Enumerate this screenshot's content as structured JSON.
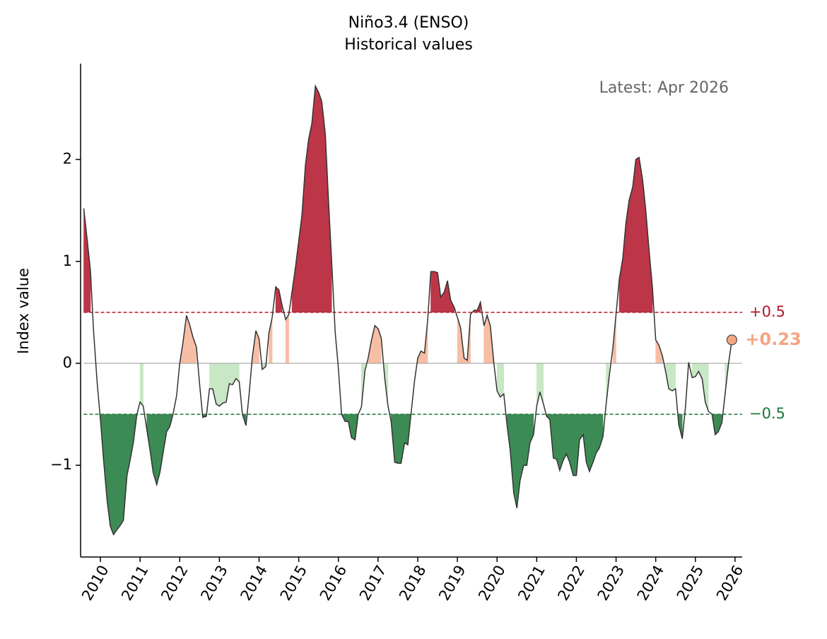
{
  "chart_data": {
    "type": "line",
    "title": "Niño3.4 (ENSO)",
    "subtitle": "Historical values",
    "ylabel": "Index value",
    "annotation": "Latest: Apr 2026",
    "xlim": [
      2009.5,
      2026.18
    ],
    "ylim": [
      -1.9,
      2.94
    ],
    "xticks": [
      2010,
      2011,
      2012,
      2013,
      2014,
      2015,
      2016,
      2017,
      2018,
      2019,
      2020,
      2021,
      2022,
      2023,
      2024,
      2025,
      2026
    ],
    "yticks": [
      {
        "value": -1,
        "label": "−1"
      },
      0,
      1,
      2
    ],
    "line_color": "#333333",
    "zero_line_color": "#999999",
    "fill_colors": {
      "strong_positive": "#bc3648",
      "weak_positive": "#f7bea6",
      "weak_negative": "#c8e8c5",
      "strong_negative": "#3c8b55"
    },
    "thresholds": [
      {
        "value": 0.5,
        "label": "+0.5",
        "color": "#b2182b"
      },
      {
        "value": -0.5,
        "label": "−0.5",
        "color": "#1b7837"
      }
    ],
    "last_value_label": "+0.23",
    "last_marker_color": "#f4a582",
    "x": [
      2009.58,
      2009.67,
      2009.75,
      2009.83,
      2009.92,
      2010,
      2010.08,
      2010.17,
      2010.25,
      2010.33,
      2010.42,
      2010.5,
      2010.58,
      2010.67,
      2010.75,
      2010.83,
      2010.92,
      2011,
      2011.08,
      2011.17,
      2011.25,
      2011.33,
      2011.42,
      2011.5,
      2011.58,
      2011.67,
      2011.75,
      2011.83,
      2011.92,
      2012,
      2012.08,
      2012.17,
      2012.25,
      2012.33,
      2012.42,
      2012.5,
      2012.58,
      2012.67,
      2012.75,
      2012.83,
      2012.92,
      2013,
      2013.08,
      2013.17,
      2013.25,
      2013.33,
      2013.42,
      2013.5,
      2013.58,
      2013.67,
      2013.75,
      2013.83,
      2013.92,
      2014,
      2014.08,
      2014.17,
      2014.25,
      2014.33,
      2014.42,
      2014.5,
      2014.58,
      2014.67,
      2014.75,
      2014.83,
      2014.92,
      2015,
      2015.08,
      2015.17,
      2015.25,
      2015.33,
      2015.42,
      2015.5,
      2015.58,
      2015.67,
      2015.75,
      2015.83,
      2015.92,
      2016,
      2016.08,
      2016.17,
      2016.25,
      2016.33,
      2016.42,
      2016.5,
      2016.58,
      2016.67,
      2016.75,
      2016.83,
      2016.92,
      2017,
      2017.08,
      2017.17,
      2017.25,
      2017.33,
      2017.42,
      2017.5,
      2017.58,
      2017.67,
      2017.75,
      2017.83,
      2017.92,
      2018,
      2018.08,
      2018.17,
      2018.25,
      2018.33,
      2018.42,
      2018.5,
      2018.58,
      2018.67,
      2018.75,
      2018.83,
      2018.92,
      2019,
      2019.08,
      2019.17,
      2019.25,
      2019.33,
      2019.42,
      2019.5,
      2019.58,
      2019.67,
      2019.75,
      2019.83,
      2019.92,
      2020,
      2020.08,
      2020.17,
      2020.25,
      2020.33,
      2020.42,
      2020.5,
      2020.58,
      2020.67,
      2020.75,
      2020.83,
      2020.92,
      2021,
      2021.08,
      2021.17,
      2021.25,
      2021.33,
      2021.42,
      2021.5,
      2021.58,
      2021.67,
      2021.75,
      2021.83,
      2021.92,
      2022,
      2022.08,
      2022.17,
      2022.25,
      2022.33,
      2022.42,
      2022.5,
      2022.58,
      2022.67,
      2022.75,
      2022.83,
      2022.92,
      2023,
      2023.08,
      2023.17,
      2023.25,
      2023.33,
      2023.42,
      2023.5,
      2023.58,
      2023.67,
      2023.75,
      2023.83,
      2023.92,
      2024,
      2024.08,
      2024.17,
      2024.25,
      2024.33,
      2024.42,
      2024.5,
      2024.58,
      2024.67,
      2024.75,
      2024.83,
      2024.92,
      2025,
      2025.08,
      2025.17,
      2025.25,
      2025.33,
      2025.42,
      2025.5,
      2025.58,
      2025.67,
      2025.75,
      2025.83,
      2025.92
    ],
    "values": [
      1.52,
      1.2,
      0.9,
      0.3,
      -0.2,
      -0.55,
      -0.95,
      -1.35,
      -1.6,
      -1.68,
      -1.63,
      -1.59,
      -1.54,
      -1.1,
      -0.95,
      -0.78,
      -0.5,
      -0.38,
      -0.42,
      -0.65,
      -0.85,
      -1.07,
      -1.19,
      -1.07,
      -0.88,
      -0.67,
      -0.62,
      -0.5,
      -0.32,
      0.0,
      0.2,
      0.47,
      0.38,
      0.26,
      0.16,
      -0.2,
      -0.53,
      -0.52,
      -0.25,
      -0.25,
      -0.4,
      -0.42,
      -0.39,
      -0.38,
      -0.2,
      -0.21,
      -0.15,
      -0.18,
      -0.5,
      -0.61,
      -0.3,
      0.06,
      0.32,
      0.24,
      -0.06,
      -0.03,
      0.3,
      0.45,
      0.75,
      0.72,
      0.57,
      0.43,
      0.48,
      0.7,
      0.95,
      1.2,
      1.45,
      1.95,
      2.2,
      2.35,
      2.72,
      2.66,
      2.57,
      2.25,
      1.6,
      1.0,
      0.3,
      -0.05,
      -0.5,
      -0.57,
      -0.57,
      -0.73,
      -0.75,
      -0.5,
      -0.43,
      -0.07,
      0.05,
      0.22,
      0.37,
      0.34,
      0.25,
      -0.15,
      -0.42,
      -0.57,
      -0.97,
      -0.98,
      -0.98,
      -0.78,
      -0.8,
      -0.5,
      -0.17,
      0.05,
      0.12,
      0.1,
      0.42,
      0.9,
      0.9,
      0.89,
      0.65,
      0.7,
      0.81,
      0.62,
      0.55,
      0.45,
      0.35,
      0.05,
      0.03,
      0.48,
      0.52,
      0.52,
      0.6,
      0.37,
      0.47,
      0.37,
      0.0,
      -0.27,
      -0.33,
      -0.3,
      -0.6,
      -0.85,
      -1.27,
      -1.42,
      -1.15,
      -1.0,
      -1.0,
      -0.78,
      -0.7,
      -0.42,
      -0.28,
      -0.4,
      -0.52,
      -0.55,
      -0.93,
      -0.94,
      -1.05,
      -0.95,
      -0.89,
      -0.97,
      -1.1,
      -1.1,
      -0.75,
      -0.7,
      -0.97,
      -1.06,
      -0.97,
      -0.88,
      -0.83,
      -0.72,
      -0.4,
      -0.12,
      0.15,
      0.48,
      0.82,
      1.03,
      1.38,
      1.6,
      1.73,
      2.0,
      2.02,
      1.8,
      1.5,
      1.12,
      0.73,
      0.23,
      0.18,
      0.07,
      -0.08,
      -0.25,
      -0.27,
      -0.25,
      -0.6,
      -0.74,
      -0.43,
      0.01,
      -0.14,
      -0.13,
      -0.08,
      -0.15,
      -0.38,
      -0.47,
      -0.5,
      -0.7,
      -0.67,
      -0.58,
      -0.3,
      -0.02,
      0.23
    ]
  }
}
